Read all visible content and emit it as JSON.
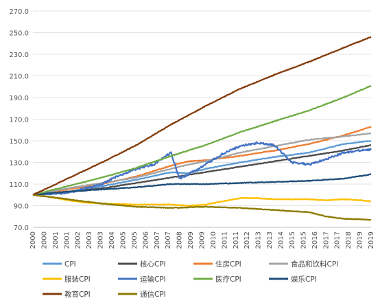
{
  "chart_data": {
    "type": "line",
    "title": "",
    "xlabel": "",
    "ylabel": "",
    "ylim": [
      70,
      270
    ],
    "yticks": [
      "70.0",
      "90.0",
      "110.0",
      "130.0",
      "150.0",
      "170.0",
      "190.0",
      "210.0",
      "230.0",
      "250.0",
      "270.0"
    ],
    "xticks": [
      "2000",
      "2000",
      "2001",
      "2001",
      "2002",
      "2003",
      "2003",
      "2004",
      "2005",
      "2005",
      "2006",
      "2007",
      "2007",
      "2008",
      "2009",
      "2009",
      "2010",
      "2011",
      "2011",
      "2012",
      "2013",
      "2013",
      "2014",
      "2015",
      "2015",
      "2016",
      "2017",
      "2017",
      "2018",
      "2019",
      "2019"
    ],
    "xrange": [
      2000.0,
      2019.6
    ],
    "grid": "horizontal",
    "legend_position": "bottom",
    "series": [
      {
        "name": "CPI",
        "color": "#5b9bd5",
        "points": [
          [
            2000,
            100
          ],
          [
            2002,
            102
          ],
          [
            2004,
            108
          ],
          [
            2006,
            114
          ],
          [
            2008,
            121
          ],
          [
            2009,
            120
          ],
          [
            2010,
            124
          ],
          [
            2012,
            130
          ],
          [
            2014,
            135
          ],
          [
            2016,
            139
          ],
          [
            2018,
            147
          ],
          [
            2019.6,
            150
          ]
        ]
      },
      {
        "name": "核心CPI",
        "color": "#4d4d4d",
        "points": [
          [
            2000,
            100
          ],
          [
            2002,
            103
          ],
          [
            2004,
            106
          ],
          [
            2006,
            111
          ],
          [
            2008,
            116
          ],
          [
            2010,
            121
          ],
          [
            2012,
            126
          ],
          [
            2014,
            131
          ],
          [
            2016,
            136
          ],
          [
            2018,
            141
          ],
          [
            2019.6,
            146
          ]
        ]
      },
      {
        "name": "住房CPI",
        "color": "#ed7d31",
        "points": [
          [
            2000,
            100
          ],
          [
            2002,
            105
          ],
          [
            2004,
            110
          ],
          [
            2006,
            117
          ],
          [
            2008,
            127
          ],
          [
            2009,
            131
          ],
          [
            2010,
            132
          ],
          [
            2012,
            136
          ],
          [
            2014,
            141
          ],
          [
            2016,
            147
          ],
          [
            2018,
            155
          ],
          [
            2019.6,
            163
          ]
        ]
      },
      {
        "name": "食品和饮料CPI",
        "color": "#a5a5a5",
        "points": [
          [
            2000,
            100
          ],
          [
            2002,
            106
          ],
          [
            2004,
            111
          ],
          [
            2006,
            116
          ],
          [
            2008,
            124
          ],
          [
            2009,
            128
          ],
          [
            2010,
            131
          ],
          [
            2012,
            139
          ],
          [
            2014,
            145
          ],
          [
            2016,
            151
          ],
          [
            2018,
            154
          ],
          [
            2019.6,
            157
          ]
        ]
      },
      {
        "name": "服装CPI",
        "color": "#ffc000",
        "points": [
          [
            2000,
            100
          ],
          [
            2001,
            98
          ],
          [
            2002,
            95
          ],
          [
            2003,
            93
          ],
          [
            2004,
            92
          ],
          [
            2006,
            91
          ],
          [
            2007,
            91
          ],
          [
            2008,
            91
          ],
          [
            2009,
            90
          ],
          [
            2010,
            91
          ],
          [
            2011,
            94
          ],
          [
            2012,
            97
          ],
          [
            2013,
            97
          ],
          [
            2014,
            96
          ],
          [
            2016,
            96
          ],
          [
            2017,
            95
          ],
          [
            2018,
            96
          ],
          [
            2019,
            95
          ],
          [
            2019.6,
            94
          ]
        ]
      },
      {
        "name": "运输CPI",
        "color": "#4472c4",
        "points": [
          [
            2000,
            100
          ],
          [
            2001,
            101
          ],
          [
            2002,
            102
          ],
          [
            2003,
            106
          ],
          [
            2004,
            110
          ],
          [
            2005,
            118
          ],
          [
            2006,
            124
          ],
          [
            2007,
            128
          ],
          [
            2008,
            139
          ],
          [
            2008.5,
            115
          ],
          [
            2009,
            119
          ],
          [
            2010,
            128
          ],
          [
            2011,
            138
          ],
          [
            2012,
            145
          ],
          [
            2013,
            148
          ],
          [
            2014,
            146
          ],
          [
            2015,
            130
          ],
          [
            2016,
            128
          ],
          [
            2017,
            133
          ],
          [
            2018,
            139
          ],
          [
            2019,
            141
          ],
          [
            2019.6,
            142
          ]
        ]
      },
      {
        "name": "医疗CPI",
        "color": "#70ad47",
        "points": [
          [
            2000,
            100
          ],
          [
            2002,
            108
          ],
          [
            2004,
            116
          ],
          [
            2006,
            125
          ],
          [
            2008,
            136
          ],
          [
            2010,
            146
          ],
          [
            2012,
            158
          ],
          [
            2014,
            168
          ],
          [
            2016,
            178
          ],
          [
            2018,
            190
          ],
          [
            2019.6,
            201
          ]
        ]
      },
      {
        "name": "娱乐CPI",
        "color": "#1f4e79",
        "points": [
          [
            2000,
            100
          ],
          [
            2002,
            103
          ],
          [
            2004,
            105
          ],
          [
            2006,
            107
          ],
          [
            2008,
            110
          ],
          [
            2010,
            110
          ],
          [
            2012,
            111
          ],
          [
            2014,
            112
          ],
          [
            2016,
            113
          ],
          [
            2018,
            115
          ],
          [
            2019.6,
            119
          ]
        ]
      },
      {
        "name": "教育CPI",
        "color": "#843c0c",
        "points": [
          [
            2000,
            100
          ],
          [
            2002,
            115
          ],
          [
            2004,
            130
          ],
          [
            2006,
            146
          ],
          [
            2008,
            165
          ],
          [
            2010,
            182
          ],
          [
            2012,
            198
          ],
          [
            2014,
            211
          ],
          [
            2016,
            223
          ],
          [
            2018,
            236
          ],
          [
            2019.6,
            246
          ]
        ]
      },
      {
        "name": "通信CPI",
        "color": "#8c7a00",
        "points": [
          [
            2000,
            100
          ],
          [
            2002,
            96
          ],
          [
            2004,
            92
          ],
          [
            2006,
            89
          ],
          [
            2008,
            88
          ],
          [
            2010,
            89
          ],
          [
            2012,
            88
          ],
          [
            2014,
            86
          ],
          [
            2016,
            84
          ],
          [
            2017,
            80
          ],
          [
            2018,
            78
          ],
          [
            2019.6,
            77
          ]
        ]
      }
    ]
  }
}
